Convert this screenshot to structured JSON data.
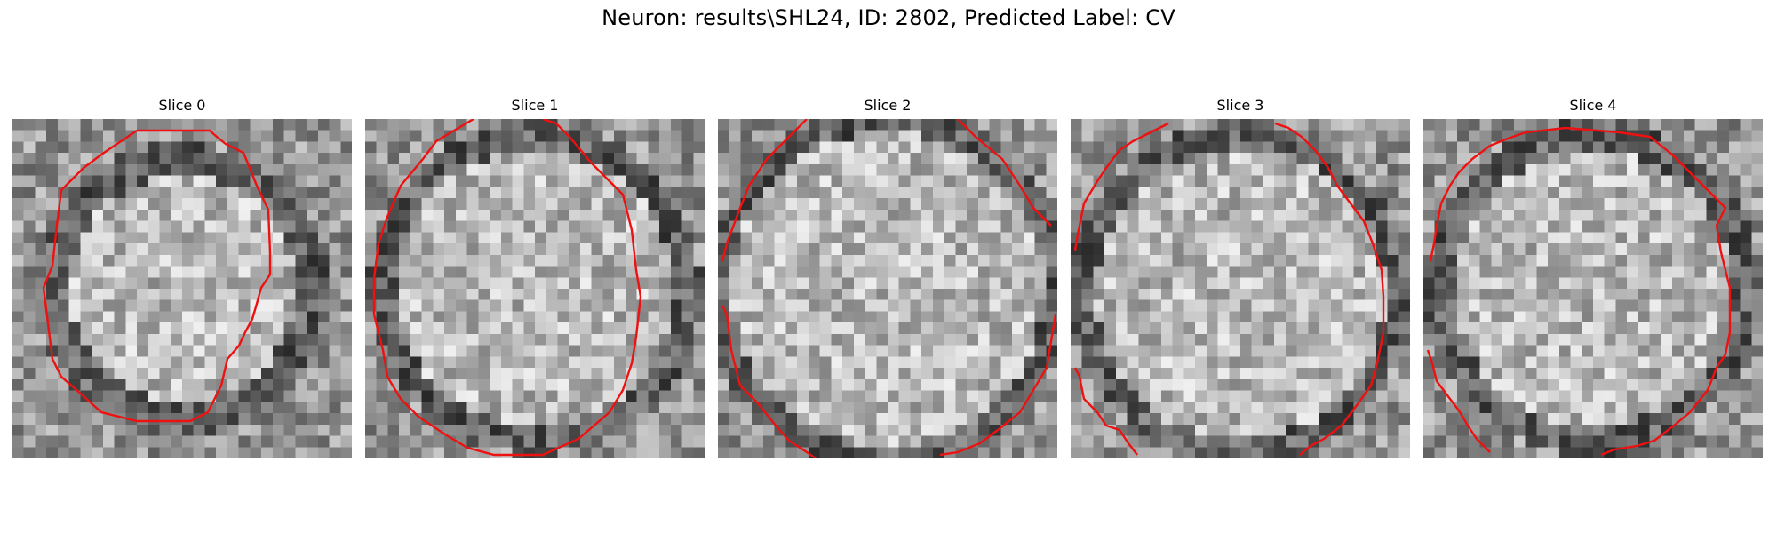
{
  "figure": {
    "title": "Neuron: results\\SHL24, ID: 2802, Predicted Label: CV"
  },
  "panels": [
    {
      "title": "Slice 0"
    },
    {
      "title": "Slice 1"
    },
    {
      "title": "Slice 2"
    },
    {
      "title": "Slice 3"
    },
    {
      "title": "Slice 4"
    }
  ],
  "colors": {
    "contour": "#ee1111",
    "background": "#ffffff"
  }
}
